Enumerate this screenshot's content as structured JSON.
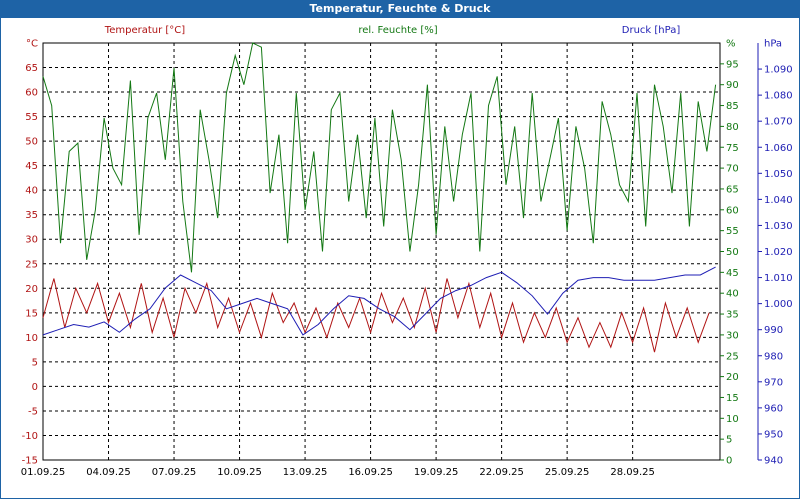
{
  "window": {
    "title": "Temperatur, Feuchte & Druck"
  },
  "colors": {
    "temperature": "#b01414",
    "humidity": "#137813",
    "pressure": "#1e1eb4",
    "titlebar": "#1e63a6"
  },
  "chart_data": {
    "type": "line",
    "title": "Temperatur, Feuchte & Druck",
    "legend": {
      "temperature": "Temperatur [°C]",
      "humidity": "rel. Feuchte [%]",
      "pressure": "Druck [hPa]"
    },
    "x_ticks": [
      "01.09.25",
      "04.09.25",
      "07.09.25",
      "10.09.25",
      "13.09.25",
      "16.09.25",
      "19.09.25",
      "22.09.25",
      "25.09.25",
      "28.09.25"
    ],
    "x_range": [
      0,
      31
    ],
    "y_axes": {
      "temperature": {
        "unit": "°C",
        "range": [
          -15,
          70
        ],
        "ticks": [
          "-15",
          "-10",
          "-5",
          "0",
          "5",
          "10",
          "15",
          "20",
          "25",
          "30",
          "35",
          "40",
          "45",
          "50",
          "55",
          "60",
          "65"
        ]
      },
      "humidity": {
        "unit": "%",
        "range": [
          0,
          100
        ],
        "ticks": [
          "0",
          "5",
          "10",
          "15",
          "20",
          "25",
          "30",
          "35",
          "40",
          "45",
          "50",
          "55",
          "60",
          "65",
          "70",
          "75",
          "80",
          "85",
          "90",
          "95"
        ]
      },
      "pressure": {
        "unit": "hPa",
        "range": [
          940,
          1100
        ],
        "ticks": [
          "940",
          "950",
          "960",
          "970",
          "980",
          "990",
          "1.000",
          "1.010",
          "1.020",
          "1.030",
          "1.040",
          "1.050",
          "1.060",
          "1.070",
          "1.080",
          "1.090"
        ]
      }
    },
    "series": [
      {
        "name": "Temperatur [°C]",
        "axis": "temperature",
        "x": [
          0,
          0.5,
          1,
          1.5,
          2,
          2.5,
          3,
          3.5,
          4,
          4.5,
          5,
          5.5,
          6,
          6.5,
          7,
          7.5,
          8,
          8.5,
          9,
          9.5,
          10,
          10.5,
          11,
          11.5,
          12,
          12.5,
          13,
          13.5,
          14,
          14.5,
          15,
          15.5,
          16,
          16.5,
          17,
          17.5,
          18,
          18.5,
          19,
          19.5,
          20,
          20.5,
          21,
          21.5,
          22,
          22.5,
          23,
          23.5,
          24,
          24.5,
          25,
          25.5,
          26,
          26.5,
          27,
          27.5,
          28,
          28.5,
          29,
          29.5,
          30,
          30.5
        ],
        "values": [
          14,
          22,
          12,
          20,
          15,
          21,
          13,
          19,
          12,
          21,
          11,
          18,
          10,
          20,
          15,
          21,
          12,
          18,
          11,
          17,
          10,
          19,
          13,
          17,
          11,
          16,
          10,
          17,
          12,
          18,
          11,
          19,
          13,
          18,
          12,
          20,
          11,
          22,
          14,
          21,
          12,
          19,
          10,
          17,
          9,
          15,
          10,
          16,
          9,
          14,
          8,
          13,
          8,
          15,
          9,
          16,
          7,
          17,
          10,
          16,
          9,
          15
        ]
      },
      {
        "name": "rel. Feuchte [%]",
        "axis": "humidity",
        "x": [
          0,
          0.4,
          0.8,
          1.2,
          1.6,
          2,
          2.4,
          2.8,
          3.2,
          3.6,
          4,
          4.4,
          4.8,
          5.2,
          5.6,
          6,
          6.4,
          6.8,
          7.2,
          7.6,
          8,
          8.4,
          8.8,
          9.2,
          9.6,
          10,
          10.4,
          10.8,
          11.2,
          11.6,
          12,
          12.4,
          12.8,
          13.2,
          13.6,
          14,
          14.4,
          14.8,
          15.2,
          15.6,
          16,
          16.4,
          16.8,
          17.2,
          17.6,
          18,
          18.4,
          18.8,
          19.2,
          19.6,
          20,
          20.4,
          20.8,
          21.2,
          21.6,
          22,
          22.4,
          22.8,
          23.2,
          23.6,
          24,
          24.4,
          24.8,
          25.2,
          25.6,
          26,
          26.4,
          26.8,
          27.2,
          27.6,
          28,
          28.4,
          28.8,
          29.2,
          29.6,
          30,
          30.4,
          30.8
        ],
        "values": [
          92,
          85,
          52,
          74,
          76,
          48,
          60,
          82,
          70,
          66,
          91,
          54,
          82,
          88,
          72,
          94,
          62,
          45,
          84,
          72,
          58,
          88,
          97,
          90,
          100,
          99,
          64,
          78,
          52,
          88,
          60,
          74,
          50,
          84,
          88,
          62,
          78,
          58,
          82,
          56,
          84,
          72,
          50,
          66,
          90,
          54,
          80,
          62,
          78,
          88,
          50,
          85,
          92,
          66,
          80,
          58,
          88,
          62,
          72,
          82,
          55,
          80,
          70,
          52,
          86,
          78,
          66,
          62,
          88,
          56,
          90,
          80,
          64,
          88,
          56,
          86,
          74,
          90
        ]
      },
      {
        "name": "Druck [hPa]",
        "axis": "pressure",
        "x": [
          0,
          0.7,
          1.4,
          2.1,
          2.8,
          3.5,
          4.2,
          4.9,
          5.6,
          6.3,
          7,
          7.7,
          8.4,
          9.1,
          9.8,
          10.5,
          11.2,
          11.9,
          12.6,
          13.3,
          14,
          14.7,
          15.4,
          16.1,
          16.8,
          17.5,
          18.2,
          18.9,
          19.6,
          20.3,
          21,
          21.7,
          22.4,
          23.1,
          23.8,
          24.5,
          25.2,
          25.9,
          26.6,
          27.3,
          28,
          28.7,
          29.4,
          30.1,
          30.8
        ],
        "values": [
          988,
          990,
          992,
          991,
          993,
          989,
          994,
          998,
          1006,
          1011,
          1008,
          1005,
          998,
          1000,
          1002,
          1000,
          998,
          988,
          992,
          998,
          1003,
          1002,
          998,
          995,
          990,
          996,
          1002,
          1005,
          1007,
          1010,
          1012,
          1008,
          1003,
          996,
          1004,
          1009,
          1010,
          1010,
          1009,
          1009,
          1009,
          1010,
          1011,
          1011,
          1014
        ]
      }
    ]
  }
}
